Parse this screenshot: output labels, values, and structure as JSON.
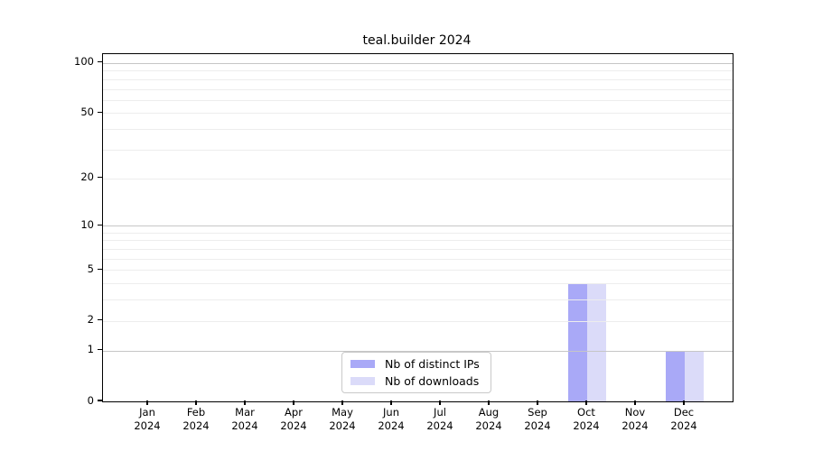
{
  "chart_data": {
    "type": "bar",
    "title": "teal.builder 2024",
    "categories": [
      "Jan",
      "Feb",
      "Mar",
      "Apr",
      "May",
      "Jun",
      "Jul",
      "Aug",
      "Sep",
      "Oct",
      "Nov",
      "Dec"
    ],
    "category_sublabel": "2024",
    "series": [
      {
        "name": "Nb of distinct IPs",
        "color": "#a9a9f7",
        "values": [
          0,
          0,
          0,
          0,
          0,
          0,
          0,
          0,
          0,
          4,
          0,
          1
        ]
      },
      {
        "name": "Nb of downloads",
        "color": "#dbdbf9",
        "values": [
          0,
          0,
          0,
          0,
          0,
          0,
          0,
          0,
          0,
          4,
          0,
          1
        ]
      }
    ],
    "yscale": "log1p",
    "ylim": [
      0,
      113
    ],
    "y_ticks": [
      0,
      1,
      2,
      5,
      10,
      20,
      50,
      100
    ],
    "y_major_gridlines": [
      1,
      10,
      100
    ],
    "y_minor_gridlines": [
      2,
      3,
      4,
      5,
      6,
      7,
      8,
      9,
      20,
      30,
      40,
      50,
      60,
      70,
      80,
      90
    ],
    "legend_position": "lower center",
    "colors": {
      "grid_major": "#c6c6c6",
      "grid_minor": "#ededed",
      "axis": "#000000",
      "background": "#ffffff"
    }
  }
}
